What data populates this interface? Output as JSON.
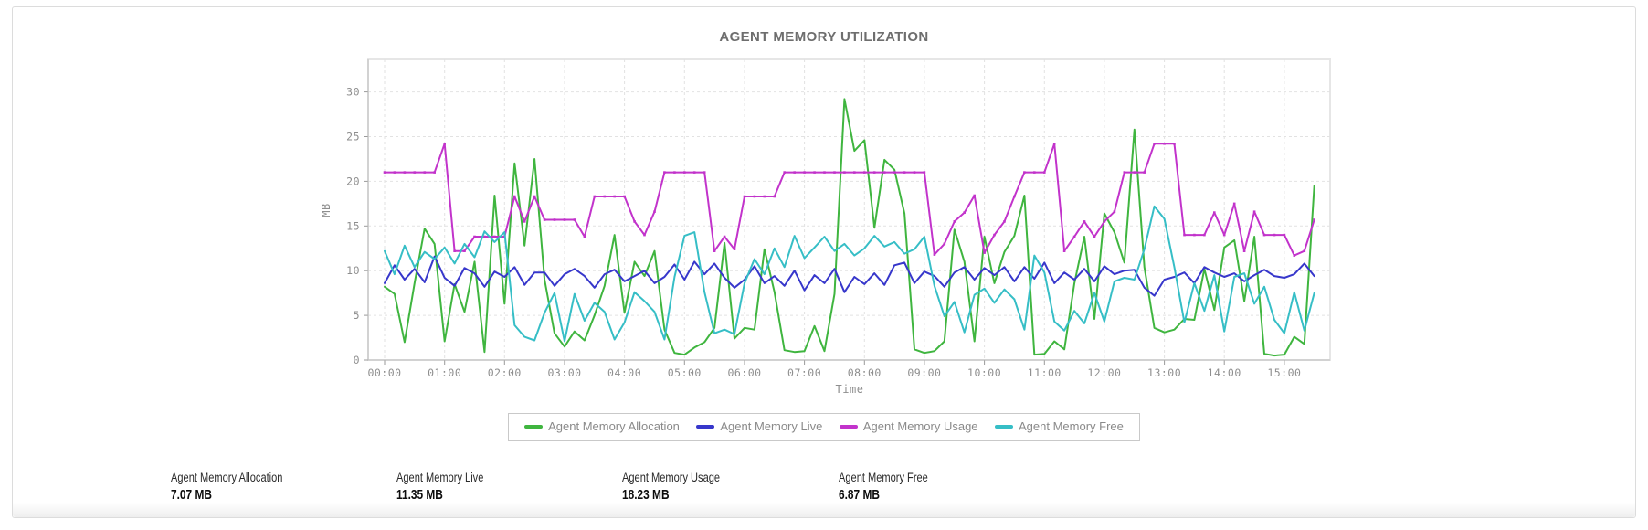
{
  "chart_data": {
    "type": "line",
    "title": "AGENT MEMORY UTILIZATION",
    "xlabel": "Time",
    "ylabel": "MB",
    "ylim": [
      0,
      30
    ],
    "y_ticks": [
      0,
      5,
      10,
      15,
      20,
      25,
      30
    ],
    "x_tick_labels": [
      "00:00",
      "01:00",
      "02:00",
      "03:00",
      "04:00",
      "05:00",
      "06:00",
      "07:00",
      "08:00",
      "09:00",
      "10:00",
      "11:00",
      "12:00",
      "13:00",
      "14:00",
      "15:00"
    ],
    "x_start": "00:00",
    "x_end": "15:30",
    "x_interval_minutes": 10,
    "grid": true,
    "legend_position": "bottom",
    "series": [
      {
        "name": "Agent Memory Allocation",
        "color": "#3fb53f",
        "values": [
          8.2,
          7.4,
          2.0,
          8.6,
          14.7,
          13.0,
          2.1,
          8.5,
          5.4,
          11.0,
          0.9,
          18.4,
          6.3,
          22.0,
          12.8,
          22.5,
          9.0,
          3.0,
          1.5,
          3.2,
          2.2,
          5.0,
          8.3,
          14.0,
          5.3,
          11.0,
          9.4,
          12.2,
          3.4,
          0.8,
          0.6,
          1.4,
          2.0,
          3.6,
          13.1,
          2.4,
          3.6,
          3.4,
          12.4,
          7.6,
          1.1,
          0.9,
          1.0,
          3.8,
          1.0,
          7.4,
          29.2,
          23.4,
          24.6,
          14.8,
          22.4,
          21.3,
          16.4,
          1.2,
          0.8,
          1.0,
          2.1,
          14.6,
          11.0,
          2.1,
          13.8,
          8.6,
          12.1,
          13.9,
          18.4,
          0.6,
          0.7,
          2.1,
          1.2,
          8.6,
          13.8,
          4.6,
          16.4,
          14.3,
          10.9,
          25.8,
          10.4,
          3.6,
          3.1,
          3.4,
          4.6,
          4.5,
          10.2,
          5.6,
          12.6,
          13.4,
          6.6,
          13.8,
          0.7,
          0.5,
          0.6,
          2.6,
          1.8,
          19.5
        ]
      },
      {
        "name": "Agent Memory Live",
        "color": "#3737cb",
        "values": [
          8.6,
          10.6,
          9.0,
          10.2,
          8.7,
          11.6,
          9.2,
          8.3,
          10.3,
          9.7,
          8.2,
          9.9,
          9.3,
          10.4,
          8.4,
          9.8,
          9.8,
          8.3,
          9.6,
          10.2,
          9.4,
          8.1,
          9.6,
          10.1,
          8.8,
          9.4,
          10.0,
          8.6,
          9.3,
          10.7,
          9.0,
          11.0,
          9.6,
          10.8,
          9.2,
          8.1,
          9.0,
          10.5,
          8.6,
          9.4,
          8.3,
          10.0,
          7.8,
          9.5,
          8.6,
          10.2,
          7.6,
          9.3,
          8.5,
          9.7,
          8.4,
          10.6,
          10.9,
          8.6,
          9.9,
          9.4,
          8.2,
          9.8,
          10.4,
          9.0,
          10.3,
          9.5,
          10.4,
          8.8,
          10.4,
          9.1,
          10.9,
          8.6,
          9.8,
          9.0,
          10.2,
          8.8,
          10.5,
          9.6,
          10.0,
          10.1,
          8.1,
          7.2,
          9.0,
          9.3,
          9.8,
          8.6,
          10.4,
          9.8,
          9.3,
          9.7,
          8.8,
          9.5,
          10.1,
          9.4,
          9.2,
          9.6,
          10.8,
          9.4
        ]
      },
      {
        "name": "Agent Memory Usage",
        "color": "#c233cb",
        "markers": true,
        "values": [
          21,
          21,
          21,
          21,
          21,
          21,
          24.2,
          12.2,
          12.2,
          13.8,
          13.8,
          13.8,
          13.8,
          18.3,
          15.5,
          18.3,
          15.7,
          15.7,
          15.7,
          15.7,
          13.8,
          18.3,
          18.3,
          18.3,
          18.3,
          15.5,
          14.0,
          16.6,
          21,
          21,
          21,
          21,
          21,
          12.2,
          13.8,
          12.4,
          18.3,
          18.3,
          18.3,
          18.3,
          21,
          21,
          21,
          21,
          21,
          21,
          21,
          21,
          21,
          21,
          21,
          21,
          21,
          21,
          21,
          11.8,
          13.0,
          15.5,
          16.5,
          18.4,
          12.0,
          14.0,
          15.5,
          18.3,
          21,
          21,
          21,
          24.2,
          12.2,
          13.8,
          15.5,
          13.8,
          15.5,
          16.6,
          21,
          21,
          21,
          24.2,
          24.2,
          24.2,
          14.0,
          14.0,
          14.0,
          16.5,
          14.0,
          17.5,
          12.2,
          16.6,
          14.0,
          14.0,
          14.0,
          11.7,
          12.2,
          15.7
        ]
      },
      {
        "name": "Agent Memory Free",
        "color": "#36bec6",
        "values": [
          12.2,
          9.6,
          12.8,
          10.4,
          12.1,
          11.3,
          12.6,
          10.8,
          13.0,
          11.5,
          14.4,
          13.2,
          14.3,
          3.9,
          2.6,
          2.2,
          5.3,
          7.5,
          2.1,
          7.4,
          4.4,
          6.4,
          5.4,
          2.3,
          4.2,
          7.6,
          6.6,
          5.4,
          2.3,
          9.3,
          13.9,
          14.3,
          7.6,
          3.0,
          3.4,
          2.9,
          8.6,
          11.3,
          9.6,
          12.5,
          10.4,
          13.9,
          11.4,
          12.6,
          13.8,
          12.2,
          13.0,
          11.7,
          12.5,
          13.9,
          12.7,
          13.2,
          11.9,
          12.4,
          13.8,
          8.3,
          4.9,
          6.5,
          3.1,
          7.3,
          8.0,
          6.4,
          7.9,
          6.8,
          3.4,
          11.7,
          9.8,
          4.3,
          3.3,
          5.5,
          4.1,
          7.5,
          4.3,
          8.8,
          9.2,
          9.0,
          12.4,
          17.2,
          15.8,
          10.4,
          4.2,
          8.6,
          5.5,
          9.5,
          3.2,
          9.3,
          9.7,
          6.3,
          8.2,
          4.5,
          3.0,
          7.6,
          3.3,
          7.5
        ]
      }
    ]
  },
  "stats": [
    {
      "label": "Agent Memory Allocation",
      "value": "7.07 MB"
    },
    {
      "label": "Agent Memory Live",
      "value": "11.35 MB"
    },
    {
      "label": "Agent Memory Usage",
      "value": "18.23 MB"
    },
    {
      "label": "Agent Memory Free",
      "value": "6.87 MB"
    }
  ]
}
